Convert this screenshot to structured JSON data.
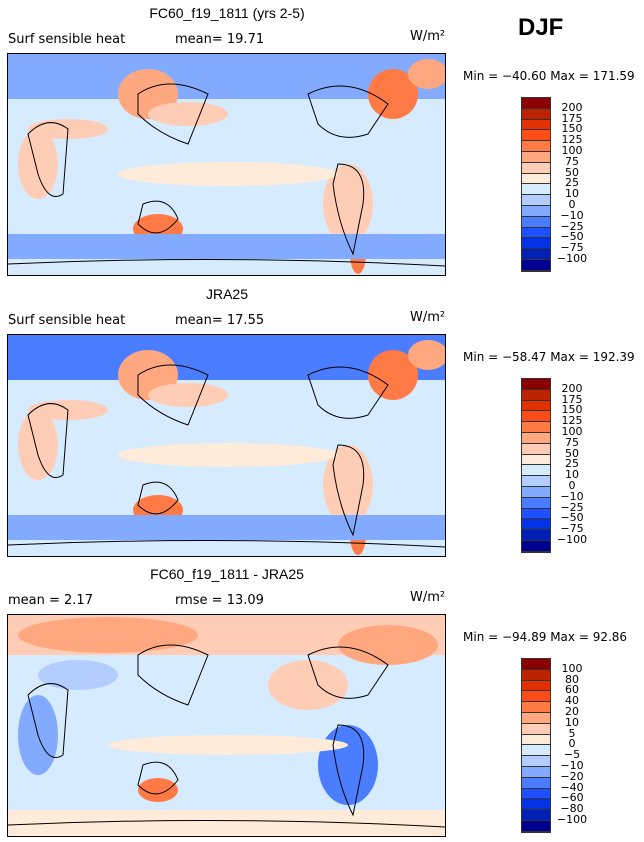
{
  "season": "DJF",
  "units": "W/m²",
  "colors": [
    "#8B0000",
    "#BB2200",
    "#E33000",
    "#FF4D1A",
    "#FF7A45",
    "#FFA880",
    "#FFCDB5",
    "#FFEBDA",
    "#D7EBFF",
    "#B4CDFF",
    "#82AAFF",
    "#4A7DFF",
    "#1E50FF",
    "#0032E6",
    "#0020B4",
    "#000090"
  ],
  "panels": [
    {
      "title": "FC60_f19_1811 (yrs 2-5)",
      "left_label": "Surf sensible heat",
      "stat1": "mean=  19.71",
      "stat2": "",
      "minmax": "Min = −40.60  Max = 171.59",
      "levels": [
        "200",
        "175",
        "150",
        "125",
        "100",
        "75",
        "50",
        "25",
        "10",
        "0",
        "−10",
        "−25",
        "−50",
        "−75",
        "−100"
      ]
    },
    {
      "title": "JRA25",
      "left_label": "Surf sensible heat",
      "stat1": "mean=  17.55",
      "stat2": "",
      "minmax": "Min = −58.47  Max = 192.39",
      "levels": [
        "200",
        "175",
        "150",
        "125",
        "100",
        "75",
        "50",
        "25",
        "10",
        "0",
        "−10",
        "−25",
        "−50",
        "−75",
        "−100"
      ]
    },
    {
      "title": "FC60_f19_1811 - JRA25",
      "left_label": "mean =    2.17",
      "stat1": "rmse =  13.09",
      "stat2": "",
      "minmax": "Min = −94.89  Max =   92.86",
      "levels": [
        "100",
        "80",
        "60",
        "40",
        "20",
        "10",
        "5",
        "0",
        "−5",
        "−10",
        "−20",
        "−40",
        "−60",
        "−80",
        "−100"
      ]
    }
  ]
}
